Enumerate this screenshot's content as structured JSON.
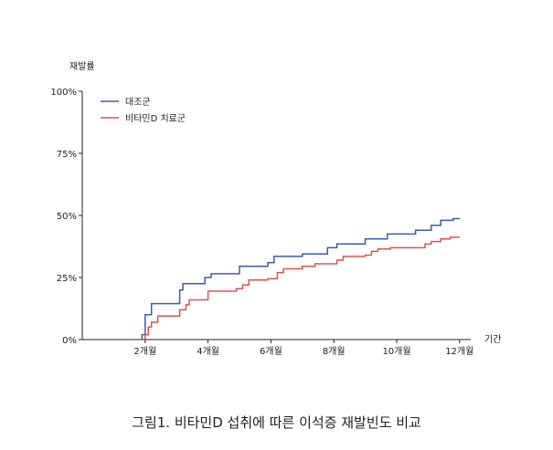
{
  "caption": "그림1. 비타민D 섭취에 따른 이석증 재발빈도 비교",
  "chart_data": {
    "type": "line",
    "step": true,
    "title": "",
    "xlabel": "기간",
    "ylabel": "재발률",
    "x_unit": "개월",
    "xlim": [
      0,
      13
    ],
    "ylim": [
      0,
      100
    ],
    "x_ticks": [
      2,
      4,
      6,
      8,
      10,
      12
    ],
    "x_tick_labels": [
      "2개월",
      "4개월",
      "6개월",
      "8개월",
      "10개월",
      "12개월"
    ],
    "y_ticks": [
      0,
      25,
      50,
      75,
      100
    ],
    "y_tick_labels": [
      "0%",
      "25%",
      "50%",
      "75%",
      "100%"
    ],
    "grid": false,
    "legend_position": "top-left",
    "series": [
      {
        "name": "대조군",
        "color": "#3a5bb8",
        "points": [
          [
            1.9,
            0
          ],
          [
            1.9,
            2
          ],
          [
            2.0,
            2
          ],
          [
            2.0,
            10
          ],
          [
            2.2,
            10
          ],
          [
            2.2,
            14.5
          ],
          [
            3.1,
            14.5
          ],
          [
            3.1,
            20
          ],
          [
            3.2,
            20
          ],
          [
            3.2,
            22.5
          ],
          [
            3.9,
            22.5
          ],
          [
            3.9,
            25
          ],
          [
            4.1,
            25
          ],
          [
            4.1,
            26.5
          ],
          [
            5.0,
            26.5
          ],
          [
            5.0,
            29.5
          ],
          [
            5.9,
            29.5
          ],
          [
            5.9,
            31
          ],
          [
            6.1,
            31
          ],
          [
            6.1,
            33.5
          ],
          [
            7.0,
            33.5
          ],
          [
            7.0,
            34.5
          ],
          [
            7.8,
            34.5
          ],
          [
            7.8,
            37
          ],
          [
            8.1,
            37
          ],
          [
            8.1,
            38.5
          ],
          [
            9.0,
            38.5
          ],
          [
            9.0,
            40.5
          ],
          [
            9.7,
            40.5
          ],
          [
            9.7,
            42.5
          ],
          [
            10.6,
            42.5
          ],
          [
            10.6,
            44
          ],
          [
            11.1,
            44
          ],
          [
            11.1,
            46
          ],
          [
            11.4,
            46
          ],
          [
            11.4,
            48
          ],
          [
            11.8,
            48
          ],
          [
            11.8,
            48.7
          ],
          [
            12.0,
            48.7
          ]
        ]
      },
      {
        "name": "비타민D 치료군",
        "color": "#e05050",
        "points": [
          [
            2.0,
            0
          ],
          [
            2.0,
            2
          ],
          [
            2.1,
            2
          ],
          [
            2.1,
            5
          ],
          [
            2.2,
            5
          ],
          [
            2.2,
            7
          ],
          [
            2.4,
            7
          ],
          [
            2.4,
            9.5
          ],
          [
            3.1,
            9.5
          ],
          [
            3.1,
            12
          ],
          [
            3.3,
            12
          ],
          [
            3.3,
            14
          ],
          [
            3.4,
            14
          ],
          [
            3.4,
            16
          ],
          [
            4.0,
            16
          ],
          [
            4.0,
            19.5
          ],
          [
            4.9,
            19.5
          ],
          [
            4.9,
            20.5
          ],
          [
            5.1,
            20.5
          ],
          [
            5.1,
            22
          ],
          [
            5.3,
            22
          ],
          [
            5.3,
            24
          ],
          [
            5.9,
            24
          ],
          [
            5.9,
            24.5
          ],
          [
            6.2,
            24.5
          ],
          [
            6.2,
            27
          ],
          [
            6.4,
            27
          ],
          [
            6.4,
            28.5
          ],
          [
            7.0,
            28.5
          ],
          [
            7.0,
            29.5
          ],
          [
            7.4,
            29.5
          ],
          [
            7.4,
            30.5
          ],
          [
            8.1,
            30.5
          ],
          [
            8.1,
            32
          ],
          [
            8.3,
            32
          ],
          [
            8.3,
            33.5
          ],
          [
            9.0,
            33.5
          ],
          [
            9.0,
            34
          ],
          [
            9.2,
            34
          ],
          [
            9.2,
            35.5
          ],
          [
            9.4,
            35.5
          ],
          [
            9.4,
            36.5
          ],
          [
            9.8,
            36.5
          ],
          [
            9.8,
            37
          ],
          [
            10.9,
            37
          ],
          [
            10.9,
            38.5
          ],
          [
            11.1,
            38.5
          ],
          [
            11.1,
            39.5
          ],
          [
            11.4,
            39.5
          ],
          [
            11.4,
            40.5
          ],
          [
            11.7,
            40.5
          ],
          [
            11.7,
            41.2
          ],
          [
            12.0,
            41.2
          ]
        ]
      }
    ]
  }
}
